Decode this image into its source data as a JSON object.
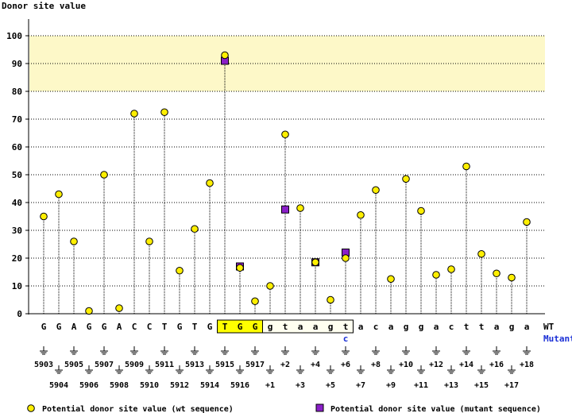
{
  "chart_data": {
    "type": "lollipop",
    "title": "",
    "ylabel": "Donor site value",
    "ylim": [
      0,
      100
    ],
    "yticks": [
      0,
      10,
      20,
      30,
      40,
      50,
      60,
      70,
      80,
      90,
      100
    ],
    "highlight_band": [
      80,
      100
    ],
    "wt_label": "WT",
    "mutant_label": "Mutant",
    "mutant_base": "c",
    "mutant_base_position": "+6",
    "legend": {
      "wt": "Potential donor site value (wt sequence)",
      "mutant": "Potential donor site value (mutant sequence)"
    },
    "positions": [
      {
        "label": "5903",
        "base": "G",
        "wt": 35
      },
      {
        "label": "5904",
        "base": "G",
        "wt": 43
      },
      {
        "label": "5905",
        "base": "A",
        "wt": 26
      },
      {
        "label": "5906",
        "base": "G",
        "wt": 1
      },
      {
        "label": "5907",
        "base": "G",
        "wt": 50
      },
      {
        "label": "5908",
        "base": "A",
        "wt": 2
      },
      {
        "label": "5909",
        "base": "C",
        "wt": 72
      },
      {
        "label": "5910",
        "base": "C",
        "wt": 26
      },
      {
        "label": "5911",
        "base": "T",
        "wt": 72.5
      },
      {
        "label": "5912",
        "base": "G",
        "wt": 15.5
      },
      {
        "label": "5913",
        "base": "T",
        "wt": 30.5
      },
      {
        "label": "5914",
        "base": "G",
        "wt": 47
      },
      {
        "label": "5915",
        "base": "T",
        "wt": 93,
        "mutant": 91
      },
      {
        "label": "5916",
        "base": "G",
        "wt": 16.5,
        "mutant": 17
      },
      {
        "label": "5917",
        "base": "G",
        "wt": 4.5
      },
      {
        "label": "+1",
        "base": "g",
        "wt": 10
      },
      {
        "label": "+2",
        "base": "t",
        "wt": 64.5,
        "mutant": 37.5
      },
      {
        "label": "+3",
        "base": "a",
        "wt": 38
      },
      {
        "label": "+4",
        "base": "a",
        "wt": 18.5,
        "mutant": 18.5
      },
      {
        "label": "+5",
        "base": "g",
        "wt": 5
      },
      {
        "label": "+6",
        "base": "t",
        "wt": 20,
        "mutant": 22
      },
      {
        "label": "+7",
        "base": "a",
        "wt": 35.5
      },
      {
        "label": "+8",
        "base": "c",
        "wt": 44.5
      },
      {
        "label": "+9",
        "base": "a",
        "wt": 12.5
      },
      {
        "label": "+10",
        "base": "g",
        "wt": 48.5
      },
      {
        "label": "+11",
        "base": "g",
        "wt": 37
      },
      {
        "label": "+12",
        "base": "a",
        "wt": 14
      },
      {
        "label": "+13",
        "base": "c",
        "wt": 16
      },
      {
        "label": "+14",
        "base": "t",
        "wt": 53
      },
      {
        "label": "+15",
        "base": "t",
        "wt": 21.5
      },
      {
        "label": "+16",
        "base": "a",
        "wt": 14.5
      },
      {
        "label": "+17",
        "base": "g",
        "wt": 13
      },
      {
        "label": "+18",
        "base": "a",
        "wt": 33
      }
    ],
    "colors": {
      "wt_marker": "#ffef00",
      "mutant_marker": "#8a1fc8",
      "band": "#fdf8c8",
      "exon_box": "#ffff00",
      "intron_box": "#fffff0",
      "mutant_text": "#1a2fd6"
    }
  }
}
